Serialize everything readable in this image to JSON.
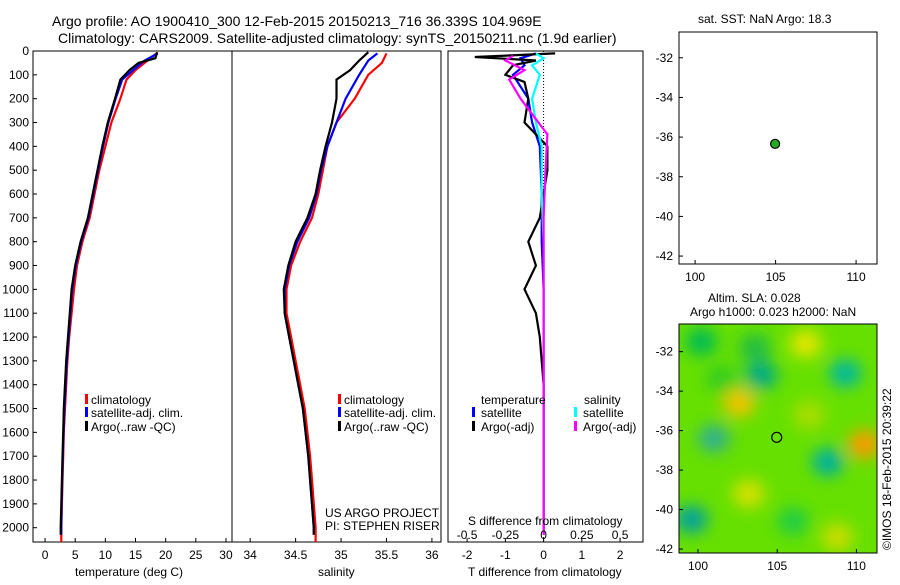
{
  "header": {
    "line1": "Argo profile: AO 1900410_300 12-Feb-2015 20150213_716 36.339S 104.969E",
    "line2": "Climatology: CARS2009. Satellite-adjusted climatology: synTS_20150211.nc (1.9d earlier)"
  },
  "sst_title": "sat. SST: NaN Argo: 18.3",
  "sla_title1": "Altim. SLA: 0.028",
  "sla_title2": "Argo h1000: 0.023 h2000: NaN",
  "credits": {
    "line1": "US ARGO PROJECT",
    "line2": "PI: STEPHEN RISER"
  },
  "side_stamp": "©IMOS 18-Feb-2015 20:39:22",
  "colors": {
    "clim": "#ff0000",
    "sat": "#0000ff",
    "argo": "#000000",
    "sal_sat": "#00ffff",
    "sal_argo": "#ff00ff"
  },
  "chart_data": [
    {
      "type": "line",
      "name": "temperature-profile",
      "xlabel": "temperature (deg C)",
      "ylabel": "",
      "xlim": [
        -2,
        31
      ],
      "ylim": [
        2060,
        0
      ],
      "x_ticks": [
        0,
        5,
        10,
        15,
        20,
        25,
        30
      ],
      "y_ticks": [
        0,
        100,
        200,
        300,
        400,
        500,
        600,
        700,
        800,
        900,
        1000,
        1100,
        1200,
        1300,
        1400,
        1500,
        1600,
        1700,
        1800,
        1900,
        2000
      ],
      "legend": [
        "climatology",
        "satellite-adj. clim.",
        "Argo(..raw -QC)"
      ],
      "series": [
        {
          "name": "climatology",
          "color": "#ff0000",
          "points": [
            [
              18.5,
              10
            ],
            [
              17,
              40
            ],
            [
              15,
              80
            ],
            [
              13.5,
              120
            ],
            [
              12.5,
              200
            ],
            [
              11,
              300
            ],
            [
              10,
              400
            ],
            [
              9,
              500
            ],
            [
              8.2,
              600
            ],
            [
              7.4,
              700
            ],
            [
              6.2,
              800
            ],
            [
              5.3,
              900
            ],
            [
              4.8,
              1000
            ],
            [
              4.4,
              1100
            ],
            [
              4,
              1200
            ],
            [
              3.7,
              1300
            ],
            [
              3.5,
              1400
            ],
            [
              3.3,
              1500
            ],
            [
              3.1,
              1600
            ],
            [
              3,
              1700
            ],
            [
              2.9,
              1800
            ],
            [
              2.8,
              1900
            ],
            [
              2.7,
              2000
            ],
            [
              2.7,
              2060
            ]
          ]
        },
        {
          "name": "satellite-adj. clim.",
          "color": "#0000ff",
          "points": [
            [
              18.7,
              10
            ],
            [
              16.5,
              40
            ],
            [
              14.6,
              80
            ],
            [
              12.8,
              120
            ],
            [
              11.7,
              200
            ],
            [
              10.5,
              300
            ],
            [
              9.6,
              400
            ],
            [
              8.8,
              500
            ],
            [
              8,
              600
            ],
            [
              7.2,
              700
            ],
            [
              6,
              800
            ],
            [
              5.1,
              900
            ],
            [
              4.5,
              1000
            ],
            [
              4.2,
              1100
            ],
            [
              3.9,
              1200
            ],
            [
              3.6,
              1300
            ],
            [
              3.4,
              1400
            ],
            [
              3.2,
              1500
            ],
            [
              3.05,
              1600
            ],
            [
              2.95,
              1700
            ],
            [
              2.85,
              1800
            ],
            [
              2.75,
              1900
            ],
            [
              2.7,
              2000
            ],
            [
              2.7,
              2030
            ]
          ]
        },
        {
          "name": "Argo(..raw -QC)",
          "color": "#000000",
          "points": [
            [
              18.6,
              5
            ],
            [
              18.3,
              30
            ],
            [
              15.5,
              50
            ],
            [
              14,
              80
            ],
            [
              12.5,
              120
            ],
            [
              11.6,
              200
            ],
            [
              10.4,
              300
            ],
            [
              9.5,
              400
            ],
            [
              8.7,
              500
            ],
            [
              7.9,
              600
            ],
            [
              7.1,
              700
            ],
            [
              5.9,
              800
            ],
            [
              5,
              900
            ],
            [
              4.4,
              1000
            ],
            [
              4.1,
              1100
            ],
            [
              3.8,
              1200
            ],
            [
              3.5,
              1300
            ],
            [
              3.3,
              1400
            ],
            [
              3.1,
              1500
            ],
            [
              3,
              1600
            ],
            [
              2.9,
              1700
            ],
            [
              2.8,
              1800
            ],
            [
              2.7,
              1900
            ],
            [
              2.6,
              2000
            ],
            [
              2.6,
              2030
            ]
          ]
        }
      ]
    },
    {
      "type": "line",
      "name": "salinity-profile",
      "xlabel": "salinity",
      "xlim": [
        33.8,
        36.1
      ],
      "ylim": [
        2060,
        0
      ],
      "x_ticks": [
        34,
        34.5,
        35,
        35.5,
        36
      ],
      "legend": [
        "climatology",
        "satellite-adj. clim.",
        "Argo(..raw -QC)"
      ],
      "series": [
        {
          "name": "climatology",
          "color": "#ff0000",
          "points": [
            [
              35.5,
              10
            ],
            [
              35.45,
              50
            ],
            [
              35.3,
              100
            ],
            [
              35.15,
              200
            ],
            [
              34.95,
              300
            ],
            [
              34.85,
              400
            ],
            [
              34.8,
              500
            ],
            [
              34.75,
              600
            ],
            [
              34.68,
              700
            ],
            [
              34.55,
              800
            ],
            [
              34.45,
              900
            ],
            [
              34.4,
              1000
            ],
            [
              34.4,
              1100
            ],
            [
              34.45,
              1200
            ],
            [
              34.5,
              1300
            ],
            [
              34.55,
              1400
            ],
            [
              34.6,
              1500
            ],
            [
              34.63,
              1600
            ],
            [
              34.66,
              1700
            ],
            [
              34.68,
              1800
            ],
            [
              34.7,
              1900
            ],
            [
              34.72,
              2000
            ],
            [
              34.72,
              2060
            ]
          ]
        },
        {
          "name": "satellite-adj. clim.",
          "color": "#0000ff",
          "points": [
            [
              35.4,
              10
            ],
            [
              35.3,
              40
            ],
            [
              35.2,
              100
            ],
            [
              35.05,
              200
            ],
            [
              34.95,
              300
            ],
            [
              34.85,
              400
            ],
            [
              34.78,
              500
            ],
            [
              34.73,
              600
            ],
            [
              34.65,
              700
            ],
            [
              34.52,
              800
            ],
            [
              34.43,
              900
            ],
            [
              34.38,
              1000
            ],
            [
              34.38,
              1100
            ],
            [
              34.43,
              1200
            ],
            [
              34.48,
              1300
            ],
            [
              34.53,
              1400
            ],
            [
              34.58,
              1500
            ],
            [
              34.61,
              1600
            ],
            [
              34.64,
              1700
            ],
            [
              34.66,
              1800
            ],
            [
              34.68,
              1900
            ],
            [
              34.7,
              2000
            ],
            [
              34.7,
              2030
            ]
          ]
        },
        {
          "name": "Argo(..raw -QC)",
          "color": "#000000",
          "points": [
            [
              35.3,
              5
            ],
            [
              35.2,
              40
            ],
            [
              35.1,
              80
            ],
            [
              34.95,
              120
            ],
            [
              34.95,
              200
            ],
            [
              34.9,
              300
            ],
            [
              34.83,
              400
            ],
            [
              34.77,
              500
            ],
            [
              34.72,
              600
            ],
            [
              34.63,
              700
            ],
            [
              34.5,
              800
            ],
            [
              34.42,
              900
            ],
            [
              34.37,
              1000
            ],
            [
              34.38,
              1100
            ],
            [
              34.43,
              1200
            ],
            [
              34.48,
              1300
            ],
            [
              34.53,
              1400
            ],
            [
              34.58,
              1500
            ],
            [
              34.61,
              1600
            ],
            [
              34.64,
              1700
            ],
            [
              34.66,
              1800
            ],
            [
              34.68,
              1900
            ],
            [
              34.7,
              2000
            ],
            [
              34.7,
              2030
            ]
          ]
        }
      ]
    },
    {
      "type": "line",
      "name": "difference-profile",
      "xlabel": "T difference from climatology",
      "xlabel_top": "S difference from climatology",
      "xlim": [
        -2.5,
        2.6
      ],
      "ylim": [
        2060,
        0
      ],
      "x_ticks": [
        -2,
        -1,
        0,
        1,
        2
      ],
      "x_ticks_top": [
        [
          "-0.5",
          -2
        ],
        [
          "-0.25",
          -1
        ],
        [
          "0",
          0
        ],
        [
          "0.25",
          1
        ],
        [
          "0.5",
          2
        ]
      ],
      "legend_left_title": "temperature",
      "legend_right_title": "salinity",
      "legend": [
        "satellite",
        "Argo(-adj)",
        "satellite",
        "Argo(-adj)"
      ],
      "series": [
        {
          "name": "T satellite",
          "color": "#0000ff",
          "points": [
            [
              -0.2,
              10
            ],
            [
              -0.6,
              30
            ],
            [
              -0.5,
              60
            ],
            [
              -0.8,
              100
            ],
            [
              -0.4,
              200
            ],
            [
              -0.3,
              300
            ],
            [
              -0.1,
              400
            ],
            [
              -0.05,
              600
            ],
            [
              -0.05,
              800
            ],
            [
              0,
              1000
            ],
            [
              0,
              1400
            ],
            [
              0,
              2030
            ]
          ]
        },
        {
          "name": "T Argo(-adj)",
          "color": "#000000",
          "points": [
            [
              0.3,
              10
            ],
            [
              -1.8,
              25
            ],
            [
              -0.2,
              40
            ],
            [
              -0.8,
              60
            ],
            [
              -1.0,
              100
            ],
            [
              -0.5,
              130
            ],
            [
              -0.4,
              200
            ],
            [
              -0.5,
              300
            ],
            [
              0.1,
              400
            ],
            [
              0.1,
              500
            ],
            [
              0,
              600
            ],
            [
              -0.1,
              700
            ],
            [
              -0.4,
              800
            ],
            [
              -0.2,
              900
            ],
            [
              -0.5,
              1000
            ],
            [
              -0.2,
              1100
            ],
            [
              -0.1,
              1200
            ],
            [
              0,
              1400
            ],
            [
              0,
              2030
            ]
          ]
        },
        {
          "name": "S satellite",
          "color": "#00ffff",
          "points": [
            [
              -0.2,
              10
            ],
            [
              0,
              30
            ],
            [
              -0.3,
              60
            ],
            [
              -0.1,
              100
            ],
            [
              -0.3,
              200
            ],
            [
              -0.2,
              300
            ],
            [
              -0.05,
              400
            ],
            [
              -0.05,
              600
            ],
            [
              0,
              800
            ],
            [
              0,
              1000
            ],
            [
              0,
              2030
            ]
          ]
        },
        {
          "name": "S Argo(-adj)",
          "color": "#ff00ff",
          "points": [
            [
              -0.8,
              20
            ],
            [
              -1.0,
              40
            ],
            [
              -0.5,
              80
            ],
            [
              -0.9,
              120
            ],
            [
              -0.6,
              200
            ],
            [
              0.1,
              350
            ],
            [
              0.05,
              500
            ],
            [
              0,
              700
            ],
            [
              0,
              2030
            ]
          ]
        }
      ]
    },
    {
      "type": "scatter",
      "name": "sst-map",
      "xlim": [
        99,
        111.3
      ],
      "ylim": [
        -42.4,
        -30.7
      ],
      "x_ticks": [
        100,
        105,
        110
      ],
      "y_ticks": [
        -32,
        -34,
        -36,
        -38,
        -40,
        -42
      ],
      "points": [
        [
          104.97,
          -36.34
        ]
      ],
      "marker_color": "#22aa22"
    },
    {
      "type": "heatmap",
      "name": "sla-map",
      "xlim": [
        98.8,
        111.3
      ],
      "ylim": [
        -42.2,
        -30.6
      ],
      "x_ticks": [
        100,
        105,
        110
      ],
      "y_ticks": [
        -32,
        -34,
        -36,
        -38,
        -40,
        -42
      ],
      "points": [
        [
          104.97,
          -36.34
        ]
      ],
      "base_color": "#66e000",
      "blobs": [
        {
          "x": 100.2,
          "y": -31.5,
          "color": "#00bb55"
        },
        {
          "x": 101.5,
          "y": -33.4,
          "color": "#33cc22"
        },
        {
          "x": 102.6,
          "y": -34.6,
          "color": "#f5c200"
        },
        {
          "x": 103.6,
          "y": -31.8,
          "color": "#22bb44"
        },
        {
          "x": 106.8,
          "y": -31.6,
          "color": "#e6e600"
        },
        {
          "x": 109.3,
          "y": -33.1,
          "color": "#00b8a0"
        },
        {
          "x": 108.2,
          "y": -37.6,
          "color": "#00b0a0"
        },
        {
          "x": 110.5,
          "y": -36.7,
          "color": "#ff9900"
        },
        {
          "x": 99.6,
          "y": -40.5,
          "color": "#00a0a0"
        },
        {
          "x": 101.0,
          "y": -36.4,
          "color": "#30b090"
        },
        {
          "x": 106.0,
          "y": -40.6,
          "color": "#22cc44"
        },
        {
          "x": 107.0,
          "y": -35.2,
          "color": "#aadd00"
        },
        {
          "x": 103.2,
          "y": -39.2,
          "color": "#d8e000"
        },
        {
          "x": 108.8,
          "y": -41.4,
          "color": "#ccdd00"
        },
        {
          "x": 104.0,
          "y": -33.2,
          "color": "#00aa88"
        }
      ]
    }
  ]
}
